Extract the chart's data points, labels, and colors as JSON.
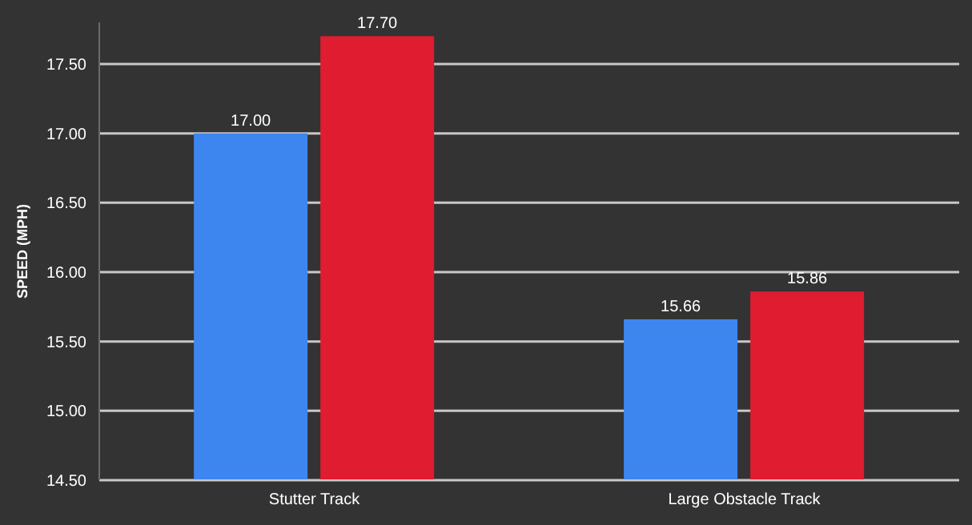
{
  "chart_data": {
    "type": "bar",
    "ylabel": "SPEED  (MPH)",
    "categories": [
      "Stutter Track",
      "Large Obstacle Track"
    ],
    "series": [
      {
        "color": "#3d86f0",
        "values": [
          17.0,
          15.66
        ],
        "value_labels": [
          "17.00",
          "15.66"
        ]
      },
      {
        "color": "#e01c30",
        "values": [
          17.7,
          15.86
        ],
        "value_labels": [
          "17.70",
          "15.86"
        ]
      }
    ],
    "ylim": [
      14.5,
      17.8
    ],
    "yticks": [
      {
        "value": 14.5,
        "label": "14.50"
      },
      {
        "value": 15,
        "label": "15.00"
      },
      {
        "value": 15.5,
        "label": "15.50"
      },
      {
        "value": 16,
        "label": "16.00"
      },
      {
        "value": 16.5,
        "label": "16.50"
      },
      {
        "value": 17,
        "label": "17.00"
      },
      {
        "value": 17.5,
        "label": "17.50"
      }
    ],
    "grid": "y"
  }
}
